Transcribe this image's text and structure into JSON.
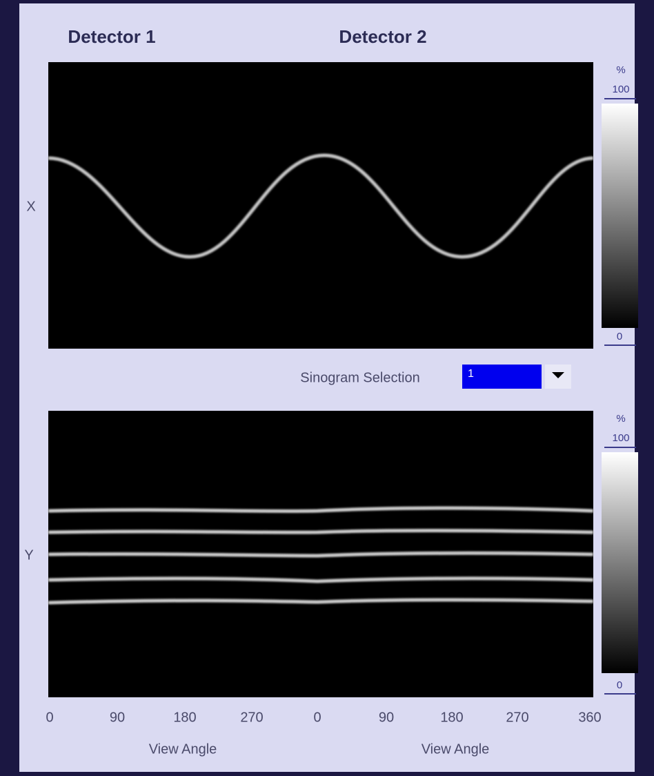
{
  "header": {
    "left": "Detector 1",
    "right": "Detector 2"
  },
  "top_panel": {
    "axis_label": "X",
    "colorbar": {
      "unit": "%",
      "max": "100",
      "min": "0"
    }
  },
  "selector": {
    "label": "Sinogram Selection",
    "value": "1"
  },
  "bottom_panel": {
    "axis_label": "Y",
    "colorbar": {
      "unit": "%",
      "max": "100",
      "min": "0"
    }
  },
  "x_axis": {
    "ticks": [
      "0",
      "90",
      "180",
      "270",
      "0",
      "90",
      "180",
      "270",
      "360"
    ],
    "labels": [
      "View Angle",
      "View Angle"
    ]
  }
}
